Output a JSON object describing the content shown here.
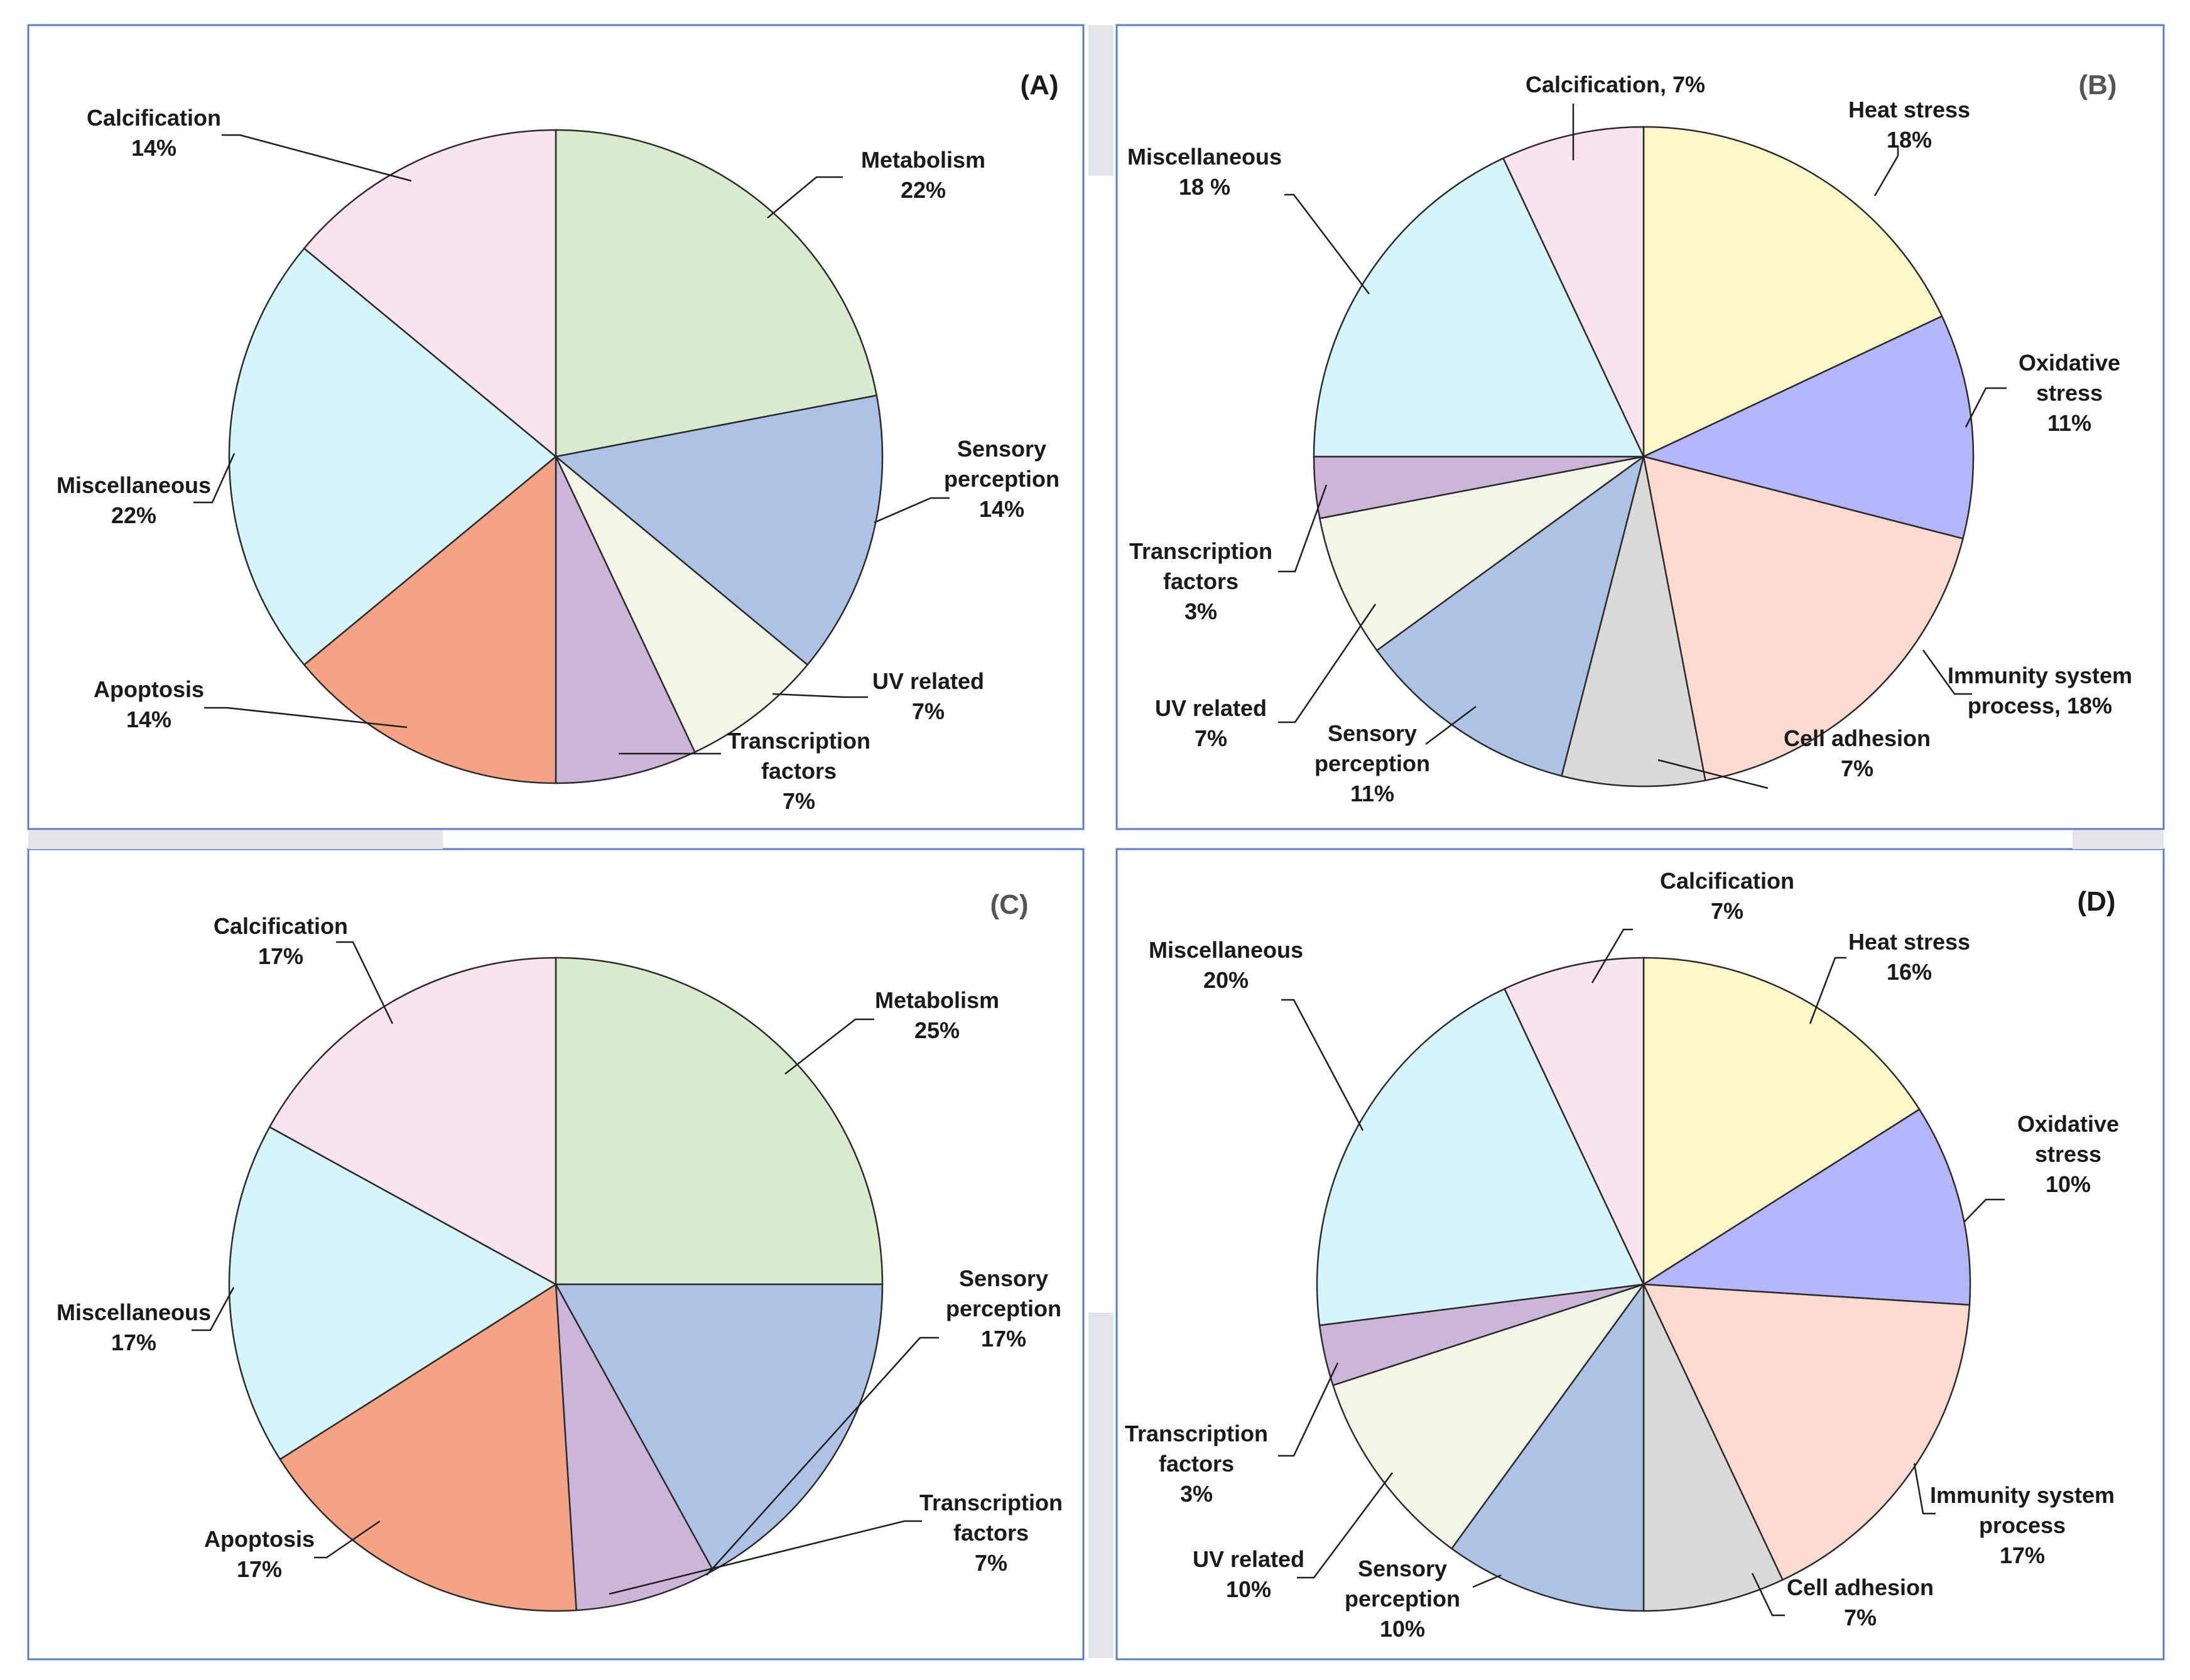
{
  "colors": {
    "Metabolism": "#d9ebcc",
    "Sensory perception": "#adc2e4",
    "UV related": "#f2f5e7",
    "Transcription factors": "#cdb5d9",
    "Apoptosis": "#f4a385",
    "Miscellaneous": "#d6f5fb",
    "Calcification": "#f9e3ee",
    "Heat stress": "#fdf8c9",
    "Oxidative stress": "#b5b5fb",
    "Immunity system process": "#fddad0",
    "Cell adhesion": "#d9d9d9"
  },
  "chart_data": [
    {
      "type": "pie",
      "title": "(A)",
      "title_color": "#1a1a1a",
      "slices": [
        {
          "name": "Metabolism",
          "value": 22,
          "label_lines": [
            "Metabolism",
            "22%"
          ]
        },
        {
          "name": "Sensory perception",
          "value": 14,
          "label_lines": [
            "Sensory",
            "perception",
            "14%"
          ]
        },
        {
          "name": "UV related",
          "value": 7,
          "label_lines": [
            "UV related",
            "7%"
          ]
        },
        {
          "name": "Transcription factors",
          "value": 7,
          "label_lines": [
            "Transcription",
            "factors",
            "7%"
          ]
        },
        {
          "name": "Apoptosis",
          "value": 14,
          "label_lines": [
            "Apoptosis",
            "14%"
          ]
        },
        {
          "name": "Miscellaneous",
          "value": 22,
          "label_lines": [
            "Miscellaneous",
            "22%"
          ]
        },
        {
          "name": "Calcification",
          "value": 14,
          "label_lines": [
            "Calcification",
            "14%"
          ]
        }
      ]
    },
    {
      "type": "pie",
      "title": "(B)",
      "title_color": "#555555",
      "slices": [
        {
          "name": "Heat stress",
          "value": 18,
          "label_lines": [
            "Heat stress",
            "18%"
          ]
        },
        {
          "name": "Oxidative stress",
          "value": 11,
          "label_lines": [
            "Oxidative",
            "stress",
            "11%"
          ]
        },
        {
          "name": "Immunity system process",
          "value": 18,
          "label_lines": [
            "Immunity system",
            "process, 18%"
          ]
        },
        {
          "name": "Cell adhesion",
          "value": 7,
          "label_lines": [
            "Cell adhesion",
            "7%"
          ]
        },
        {
          "name": "Sensory perception",
          "value": 11,
          "label_lines": [
            "Sensory",
            "perception",
            "11%"
          ]
        },
        {
          "name": "UV related",
          "value": 7,
          "label_lines": [
            "UV related",
            "7%"
          ]
        },
        {
          "name": "Transcription factors",
          "value": 3,
          "label_lines": [
            "Transcription",
            "factors",
            "3%"
          ]
        },
        {
          "name": "Miscellaneous",
          "value": 18,
          "label_lines": [
            "Miscellaneous",
            "18 %"
          ]
        },
        {
          "name": "Calcification",
          "value": 7,
          "label_lines": [
            "Calcification, 7%"
          ]
        }
      ]
    },
    {
      "type": "pie",
      "title": "(C)",
      "title_color": "#555555",
      "slices": [
        {
          "name": "Metabolism",
          "value": 25,
          "label_lines": [
            "Metabolism",
            "25%"
          ]
        },
        {
          "name": "Sensory perception",
          "value": 17,
          "label_lines": [
            "Sensory",
            "perception",
            "17%"
          ]
        },
        {
          "name": "Transcription factors",
          "value": 7,
          "label_lines": [
            "Transcription",
            "factors",
            "7%"
          ]
        },
        {
          "name": "Apoptosis",
          "value": 17,
          "label_lines": [
            "Apoptosis",
            "17%"
          ]
        },
        {
          "name": "Miscellaneous",
          "value": 17,
          "label_lines": [
            "Miscellaneous",
            "17%"
          ]
        },
        {
          "name": "Calcification",
          "value": 17,
          "label_lines": [
            "Calcification",
            "17%"
          ]
        }
      ]
    },
    {
      "type": "pie",
      "title": "(D)",
      "title_color": "#1a1a1a",
      "slices": [
        {
          "name": "Heat stress",
          "value": 16,
          "label_lines": [
            "Heat stress",
            "16%"
          ]
        },
        {
          "name": "Oxidative stress",
          "value": 10,
          "label_lines": [
            "Oxidative",
            "stress",
            "10%"
          ]
        },
        {
          "name": "Immunity system process",
          "value": 17,
          "label_lines": [
            "Immunity system",
            "process",
            "17%"
          ]
        },
        {
          "name": "Cell adhesion",
          "value": 7,
          "label_lines": [
            "Cell adhesion",
            "7%"
          ]
        },
        {
          "name": "Sensory perception",
          "value": 10,
          "label_lines": [
            "Sensory",
            "perception",
            "10%"
          ]
        },
        {
          "name": "UV related",
          "value": 10,
          "label_lines": [
            "UV related",
            "10%"
          ]
        },
        {
          "name": "Transcription factors",
          "value": 3,
          "label_lines": [
            "Transcription",
            "factors",
            "3%"
          ]
        },
        {
          "name": "Miscellaneous",
          "value": 20,
          "label_lines": [
            "Miscellaneous",
            "20%"
          ]
        },
        {
          "name": "Calcification",
          "value": 7,
          "label_lines": [
            "Calcification",
            "7%"
          ]
        }
      ]
    }
  ]
}
